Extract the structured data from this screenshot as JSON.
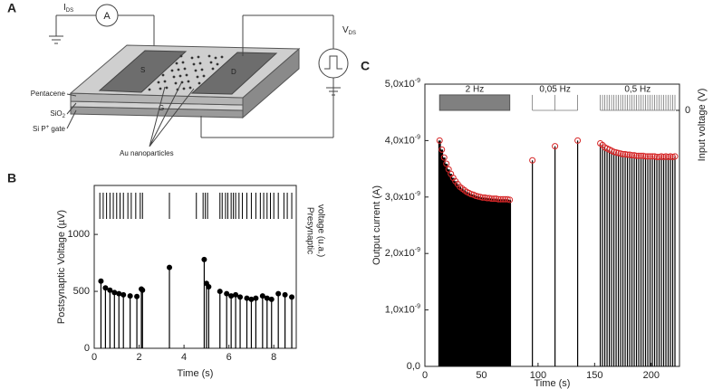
{
  "panels": {
    "a": {
      "letter": "A",
      "ids_label": "I",
      "ids_sub": "DS",
      "ammeter": "A",
      "vds_label": "V",
      "vds_sub": "DS",
      "source": "S",
      "drain": "D",
      "gate": "G",
      "pentacene": "Pentacene",
      "sio2": "SiO",
      "sio2_sub": "2",
      "si_gate": "Si P",
      "si_gate_sup": "+",
      "si_gate_tail": " gate",
      "au": "Au nanoparticles"
    }
  },
  "chart_data": [
    {
      "type": "stem",
      "letter": "B",
      "ylabel": "Postsynaptic Voltage (µV)",
      "y2label": [
        "Presynaptic",
        "voltage (u.a.)"
      ],
      "xlabel": "Time (s)",
      "xlim": [
        0,
        9
      ],
      "ylim": [
        0,
        1430
      ],
      "xticks": [
        0,
        2,
        4,
        6,
        8
      ],
      "yticks": [
        0,
        500,
        1000
      ],
      "series": [
        {
          "color": "#000000",
          "marker_color": "#000000",
          "x": [
            0.3,
            0.5,
            0.7,
            0.9,
            1.1,
            1.3,
            1.6,
            1.9,
            2.1,
            2.15,
            3.35,
            4.9,
            5.0,
            5.1,
            5.6,
            5.9,
            6.1,
            6.3,
            6.5,
            6.8,
            7.0,
            7.2,
            7.5,
            7.7,
            7.9,
            8.2,
            8.5,
            8.8
          ],
          "values": [
            590,
            530,
            510,
            490,
            480,
            470,
            460,
            455,
            520,
            510,
            710,
            780,
            570,
            540,
            500,
            480,
            460,
            470,
            450,
            440,
            430,
            440,
            460,
            440,
            430,
            480,
            470,
            450
          ]
        }
      ],
      "presynaptic_spikes": [
        0.25,
        0.4,
        0.55,
        0.7,
        0.85,
        1.0,
        1.15,
        1.3,
        1.5,
        1.65,
        1.85,
        2.05,
        2.15,
        3.35,
        4.55,
        4.85,
        4.95,
        5.05,
        5.6,
        5.7,
        5.85,
        5.95,
        6.1,
        6.2,
        6.3,
        6.45,
        6.6,
        6.8,
        7.0,
        7.2,
        7.4,
        7.55,
        7.7,
        7.85,
        8.0,
        8.2,
        8.45,
        8.6,
        8.8
      ]
    },
    {
      "type": "stem",
      "letter": "C",
      "ylabel": "Output current (A)",
      "y2label": "Input voltage (V)",
      "xlabel": "Time (s)",
      "xlim": [
        0,
        225
      ],
      "ylim": [
        0,
        5e-09
      ],
      "xticks": [
        0,
        50,
        100,
        150,
        200
      ],
      "yticks": [
        {
          "value": 0,
          "label": "0,0"
        },
        {
          "value": 1e-09,
          "label": "1,0x10",
          "exponent": "-9"
        },
        {
          "value": 2e-09,
          "label": "2,0x10",
          "exponent": "-9"
        },
        {
          "value": 3e-09,
          "label": "3,0x10",
          "exponent": "-9"
        },
        {
          "value": 4e-09,
          "label": "4,0x10",
          "exponent": "-9"
        },
        {
          "value": 5e-09,
          "label": "5,0x10",
          "exponent": "-9"
        }
      ],
      "y2lim": [
        -16.6,
        1.7
      ],
      "y2ticks": [
        0
      ],
      "series": [
        {
          "color": "#000000",
          "marker_color": "#d62728",
          "x": [
            13,
            15,
            17,
            19,
            21,
            23,
            25,
            27,
            29,
            31,
            33,
            35,
            37,
            39,
            41,
            43,
            45,
            47,
            49,
            51,
            53,
            55,
            57,
            59,
            61,
            63,
            65,
            67,
            69,
            71,
            73,
            75,
            95,
            115,
            135,
            155,
            157,
            159,
            161,
            163,
            165,
            167,
            169,
            171,
            173,
            175,
            177,
            179,
            181,
            183,
            185,
            187,
            189,
            191,
            193,
            195,
            197,
            199,
            201,
            203,
            205,
            207,
            209,
            211,
            213,
            215,
            217,
            219,
            221
          ],
          "values": [
            4e-09,
            3.84e-09,
            3.7e-09,
            3.59e-09,
            3.49e-09,
            3.41e-09,
            3.34e-09,
            3.28e-09,
            3.23e-09,
            3.18e-09,
            3.15e-09,
            3.12e-09,
            3.09e-09,
            3.07e-09,
            3.05e-09,
            3.04e-09,
            3.02e-09,
            3.01e-09,
            3e-09,
            2.99e-09,
            2.99e-09,
            2.98e-09,
            2.98e-09,
            2.97e-09,
            2.97e-09,
            2.97e-09,
            2.96e-09,
            2.96e-09,
            2.96e-09,
            2.96e-09,
            2.96e-09,
            2.95e-09,
            3.65e-09,
            3.9e-09,
            4e-09,
            3.95e-09,
            3.92e-09,
            3.88e-09,
            3.86e-09,
            3.84e-09,
            3.82e-09,
            3.8e-09,
            3.79e-09,
            3.78e-09,
            3.77e-09,
            3.76e-09,
            3.76e-09,
            3.75e-09,
            3.75e-09,
            3.74e-09,
            3.74e-09,
            3.73e-09,
            3.73e-09,
            3.73e-09,
            3.73e-09,
            3.72e-09,
            3.72e-09,
            3.72e-09,
            3.72e-09,
            3.72e-09,
            3.71e-09,
            3.71e-09,
            3.72e-09,
            3.71e-09,
            3.72e-09,
            3.71e-09,
            3.72e-09,
            3.71e-09,
            3.72e-09
          ]
        }
      ],
      "input": [
        {
          "label": "2 Hz",
          "start": 13,
          "end": 75,
          "amplitude": 1,
          "fill": "#808080"
        },
        {
          "label": "0,05 Hz",
          "x": [
            95,
            115,
            135
          ],
          "amplitude": 1
        },
        {
          "label": "0,5 Hz",
          "x": [
            155,
            157,
            159,
            161,
            163,
            165,
            167,
            169,
            171,
            173,
            175,
            177,
            179,
            181,
            183,
            185,
            187,
            189,
            191,
            193,
            195,
            197,
            199,
            201,
            203,
            205,
            207,
            209,
            211,
            213,
            215,
            217,
            219,
            221
          ],
          "amplitude": 1
        }
      ]
    }
  ]
}
